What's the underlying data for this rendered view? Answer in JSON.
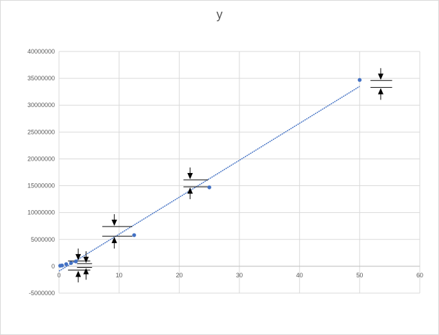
{
  "chart_data": {
    "type": "scatter",
    "title": "y",
    "xlabel": "",
    "ylabel": "",
    "xlim": [
      0,
      60
    ],
    "ylim": [
      -5000000,
      40000000
    ],
    "x_ticks": [
      0,
      10,
      20,
      30,
      40,
      50,
      60
    ],
    "y_ticks": [
      -5000000,
      0,
      5000000,
      10000000,
      15000000,
      20000000,
      25000000,
      30000000,
      35000000,
      40000000
    ],
    "x_tick_labels": [
      "0",
      "10",
      "20",
      "30",
      "40",
      "50",
      "60"
    ],
    "y_tick_labels": [
      "-5000000",
      "0",
      "5000000",
      "10000000",
      "15000000",
      "20000000",
      "25000000",
      "30000000",
      "35000000",
      "40000000"
    ],
    "grid": true,
    "legend": "none",
    "series": [
      {
        "color": "#4472c4",
        "points": [
          {
            "x": 0.2,
            "y": 100000
          },
          {
            "x": 0.5,
            "y": 150000
          },
          {
            "x": 1.2,
            "y": 400000
          },
          {
            "x": 2.0,
            "y": 600000
          },
          {
            "x": 2.8,
            "y": 900000
          },
          {
            "x": 12.5,
            "y": 5800000
          },
          {
            "x": 25.0,
            "y": 14700000
          },
          {
            "x": 50.0,
            "y": 34700000
          }
        ]
      }
    ],
    "trendline": {
      "type": "linear",
      "color": "#4472c4",
      "x": [
        0,
        50
      ],
      "y": [
        -900000,
        33500000
      ]
    },
    "error_markers": [
      {
        "x": 3.2,
        "y_low": -700000,
        "y_high": 1000000,
        "bar_x0": 1.5,
        "bar_x1": 5.2
      },
      {
        "x": 4.5,
        "y_low": -200000,
        "y_high": 500000,
        "bar_x0": 3.0,
        "bar_x1": 5.5
      },
      {
        "x": 9.2,
        "y_low": 5600000,
        "y_high": 7400000,
        "bar_x0": 7.2,
        "bar_x1": 12.2
      },
      {
        "x": 21.8,
        "y_low": 14800000,
        "y_high": 16100000,
        "bar_x0": 20.7,
        "bar_x1": 24.8
      },
      {
        "x": 53.5,
        "y_low": 33300000,
        "y_high": 34600000,
        "bar_x0": 51.8,
        "bar_x1": 55.4
      }
    ],
    "colors": {
      "marker": "#4472c4",
      "grid": "#d9d9d9",
      "axis_text": "#595959",
      "error": "#000000"
    }
  }
}
